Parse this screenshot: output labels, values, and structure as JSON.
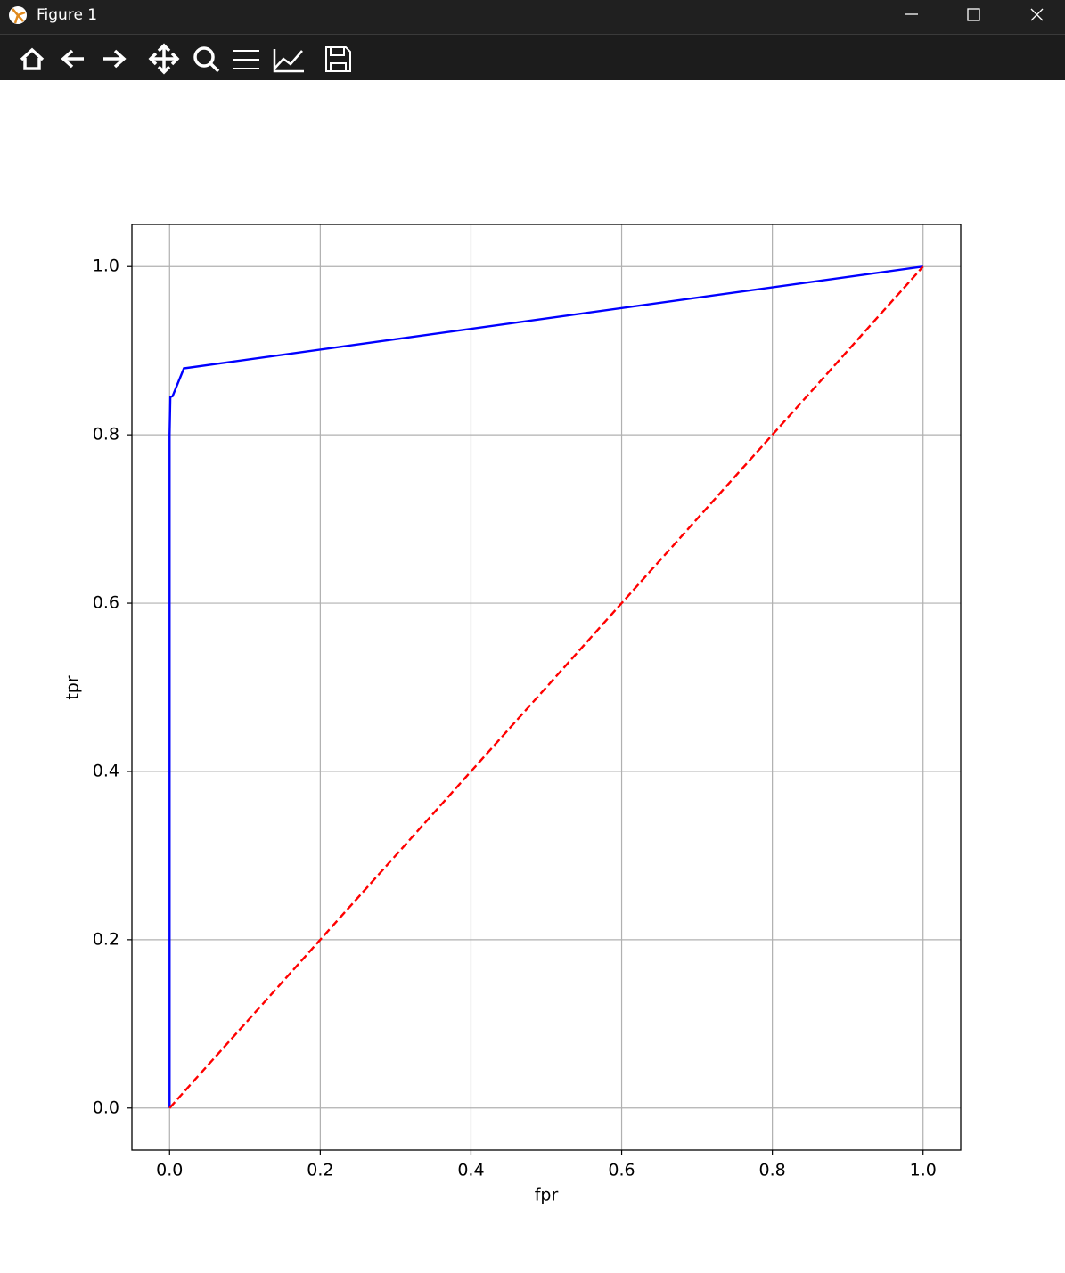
{
  "window": {
    "title": "Figure 1"
  },
  "chart_data": {
    "type": "line",
    "x_label": "fpr",
    "y_label": "tpr",
    "series": [
      {
        "color": "#0000ff",
        "dash": false,
        "x": [
          0,
          0,
          0.001,
          0.004,
          0.019,
          1
        ],
        "values": [
          0,
          0.8,
          0.845,
          0.846,
          0.879,
          1
        ]
      },
      {
        "color": "#ff0000",
        "dash": true,
        "x": [
          0,
          1
        ],
        "values": [
          0,
          1
        ]
      }
    ],
    "xlim": [
      -0.05,
      1.05
    ],
    "ylim": [
      -0.05,
      1.05
    ],
    "xticks": [
      {
        "value": 0,
        "label": "0.0"
      },
      0.2,
      0.4,
      0.6,
      0.8,
      {
        "value": 1,
        "label": "1.0"
      }
    ],
    "yticks": [
      {
        "value": 0,
        "label": "0.0"
      },
      0.2,
      0.4,
      0.6,
      0.8,
      {
        "value": 1,
        "label": "1.0"
      }
    ],
    "grid": true
  }
}
